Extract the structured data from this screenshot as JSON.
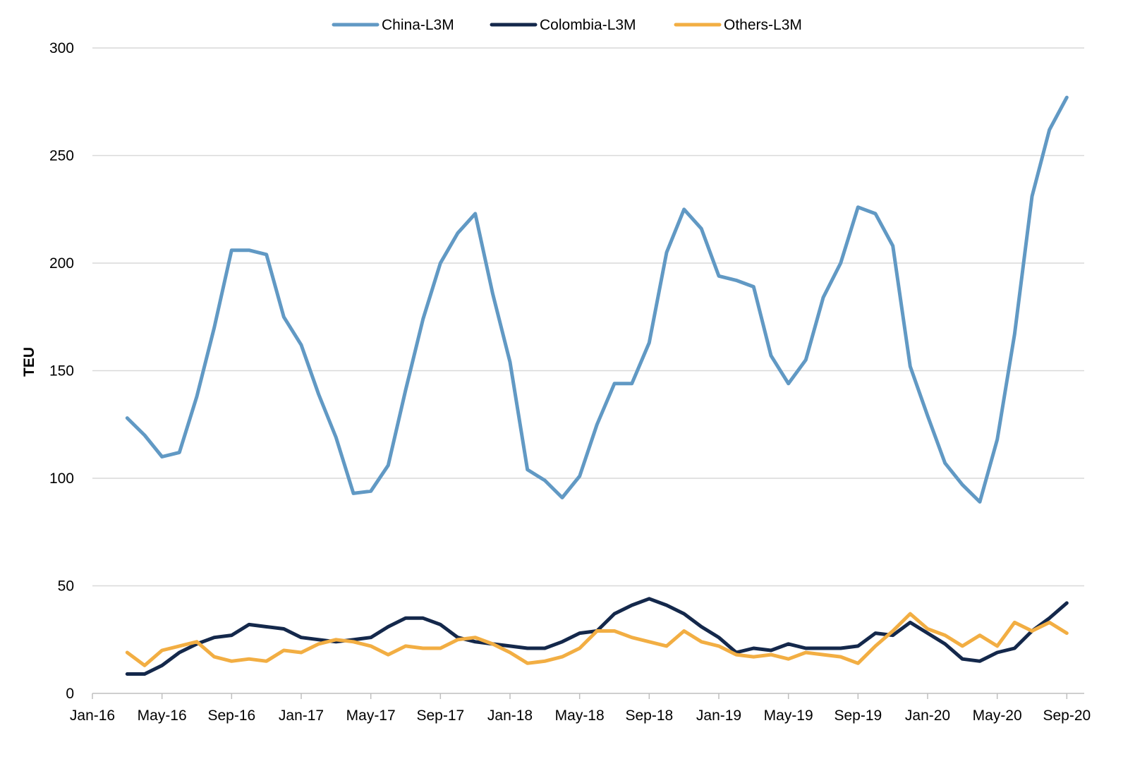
{
  "chart_data": {
    "type": "line",
    "ylabel": "TEU",
    "ylim": [
      0,
      300
    ],
    "yticks": [
      0,
      50,
      100,
      150,
      200,
      250,
      300
    ],
    "xlim": [
      "2016-01",
      "2020-10"
    ],
    "xticks": [
      {
        "x": "2016-01",
        "label": "Jan-16"
      },
      {
        "x": "2016-05",
        "label": "May-16"
      },
      {
        "x": "2016-09",
        "label": "Sep-16"
      },
      {
        "x": "2017-01",
        "label": "Jan-17"
      },
      {
        "x": "2017-05",
        "label": "May-17"
      },
      {
        "x": "2017-09",
        "label": "Sep-17"
      },
      {
        "x": "2018-01",
        "label": "Jan-18"
      },
      {
        "x": "2018-05",
        "label": "May-18"
      },
      {
        "x": "2018-09",
        "label": "Sep-18"
      },
      {
        "x": "2019-01",
        "label": "Jan-19"
      },
      {
        "x": "2019-05",
        "label": "May-19"
      },
      {
        "x": "2019-09",
        "label": "Sep-19"
      },
      {
        "x": "2020-01",
        "label": "Jan-20"
      },
      {
        "x": "2020-05",
        "label": "May-20"
      },
      {
        "x": "2020-09",
        "label": "Sep-20"
      }
    ],
    "grid": "horizontal",
    "legend": "top-center",
    "x": [
      "2016-03",
      "2016-04",
      "2016-05",
      "2016-06",
      "2016-07",
      "2016-08",
      "2016-09",
      "2016-10",
      "2016-11",
      "2016-12",
      "2017-01",
      "2017-02",
      "2017-03",
      "2017-04",
      "2017-05",
      "2017-06",
      "2017-07",
      "2017-08",
      "2017-09",
      "2017-10",
      "2017-11",
      "2017-12",
      "2018-01",
      "2018-02",
      "2018-03",
      "2018-04",
      "2018-05",
      "2018-06",
      "2018-07",
      "2018-08",
      "2018-09",
      "2018-10",
      "2018-11",
      "2018-12",
      "2019-01",
      "2019-02",
      "2019-03",
      "2019-04",
      "2019-05",
      "2019-06",
      "2019-07",
      "2019-08",
      "2019-09",
      "2019-10",
      "2019-11",
      "2019-12",
      "2020-01",
      "2020-02",
      "2020-03",
      "2020-04",
      "2020-05",
      "2020-06",
      "2020-07",
      "2020-08",
      "2020-09"
    ],
    "series": [
      {
        "name": "China-L3M",
        "color": "#6199c4",
        "values": [
          128,
          120,
          110,
          112,
          138,
          170,
          206,
          206,
          204,
          175,
          162,
          139,
          119,
          93,
          94,
          106,
          141,
          174,
          200,
          214,
          223,
          186,
          154,
          104,
          99,
          91,
          101,
          125,
          144,
          144,
          163,
          205,
          225,
          216,
          194,
          192,
          189,
          157,
          144,
          155,
          184,
          200,
          226,
          223,
          208,
          152,
          129,
          107,
          97,
          89,
          118,
          167,
          231,
          262,
          277
        ]
      },
      {
        "name": "Colombia-L3M",
        "color": "#14284b",
        "values": [
          9,
          9,
          13,
          19,
          23,
          26,
          27,
          32,
          31,
          30,
          26,
          25,
          24,
          25,
          26,
          31,
          35,
          35,
          32,
          26,
          24,
          23,
          22,
          21,
          21,
          24,
          28,
          29,
          37,
          41,
          44,
          41,
          37,
          31,
          26,
          19,
          21,
          20,
          23,
          21,
          21,
          21,
          22,
          28,
          27,
          33,
          28,
          23,
          16,
          15,
          19,
          21,
          29,
          35,
          42
        ]
      },
      {
        "name": "Others-L3M",
        "color": "#f2ae43",
        "values": [
          19,
          13,
          20,
          22,
          24,
          17,
          15,
          16,
          15,
          20,
          19,
          23,
          25,
          24,
          22,
          18,
          22,
          21,
          21,
          25,
          26,
          23,
          19,
          14,
          15,
          17,
          21,
          29,
          29,
          26,
          24,
          22,
          29,
          24,
          22,
          18,
          17,
          18,
          16,
          19,
          18,
          17,
          14,
          22,
          29,
          37,
          30,
          27,
          22,
          27,
          22,
          33,
          29,
          33,
          28
        ]
      }
    ]
  }
}
